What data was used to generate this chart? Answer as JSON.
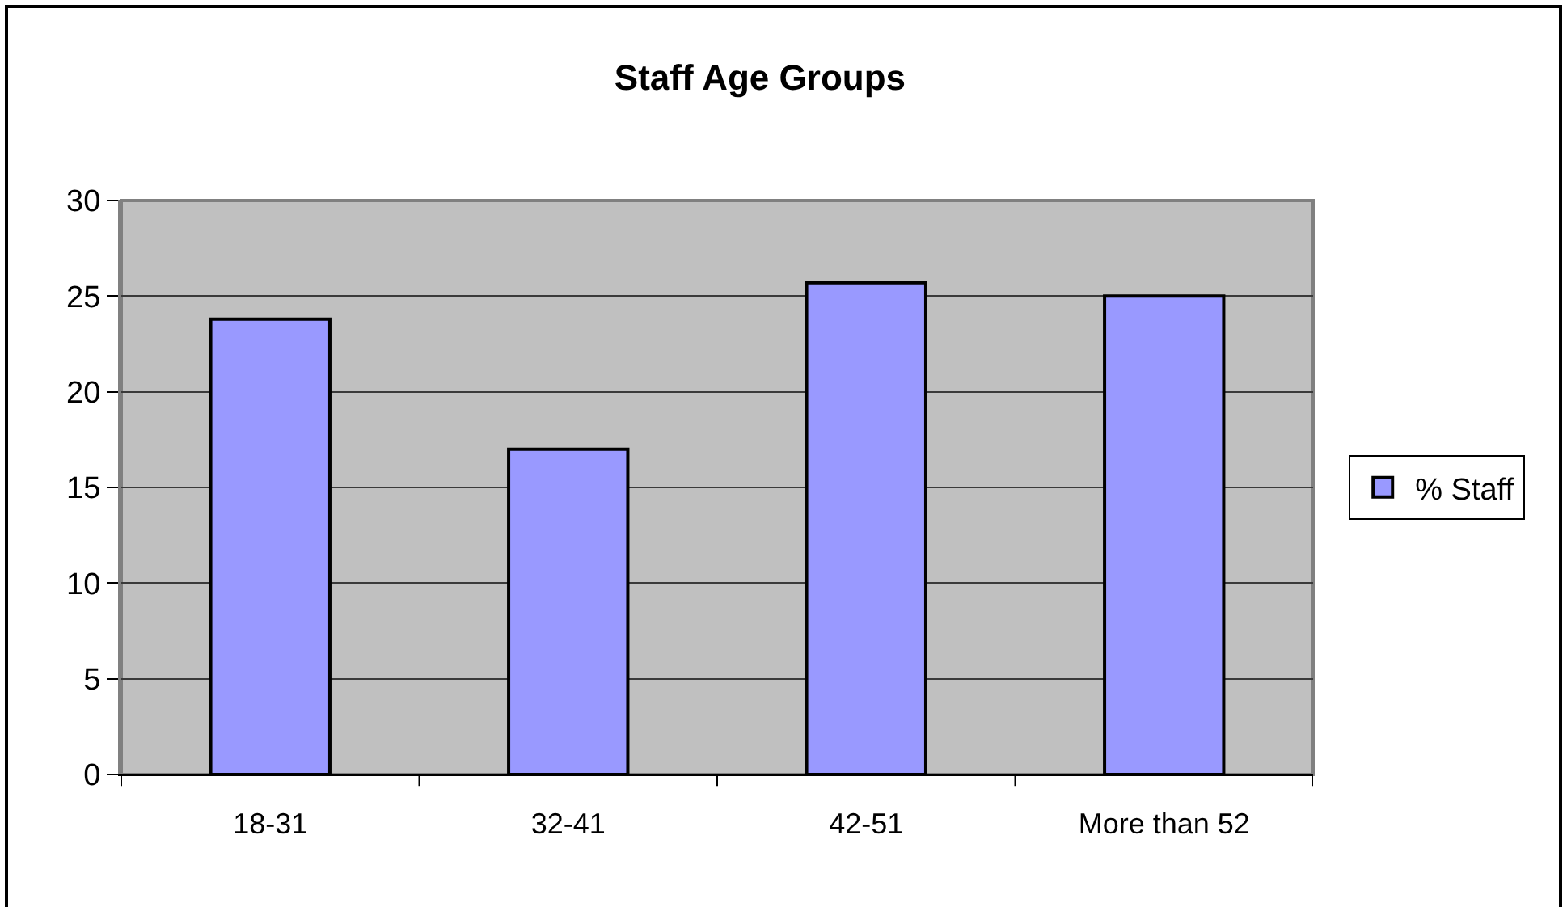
{
  "chart_data": {
    "type": "bar",
    "title": "Staff Age Groups",
    "categories": [
      "18-31",
      "32-41",
      "42-51",
      "More than 52"
    ],
    "series": [
      {
        "name": "% Staff",
        "color": "#9999ff",
        "values": [
          23.8,
          17.0,
          25.7,
          25.0
        ]
      }
    ],
    "ylim": [
      0,
      30
    ],
    "yticks": [
      0,
      5,
      10,
      15,
      20,
      25,
      30
    ],
    "grid": "y",
    "legend": "right"
  }
}
